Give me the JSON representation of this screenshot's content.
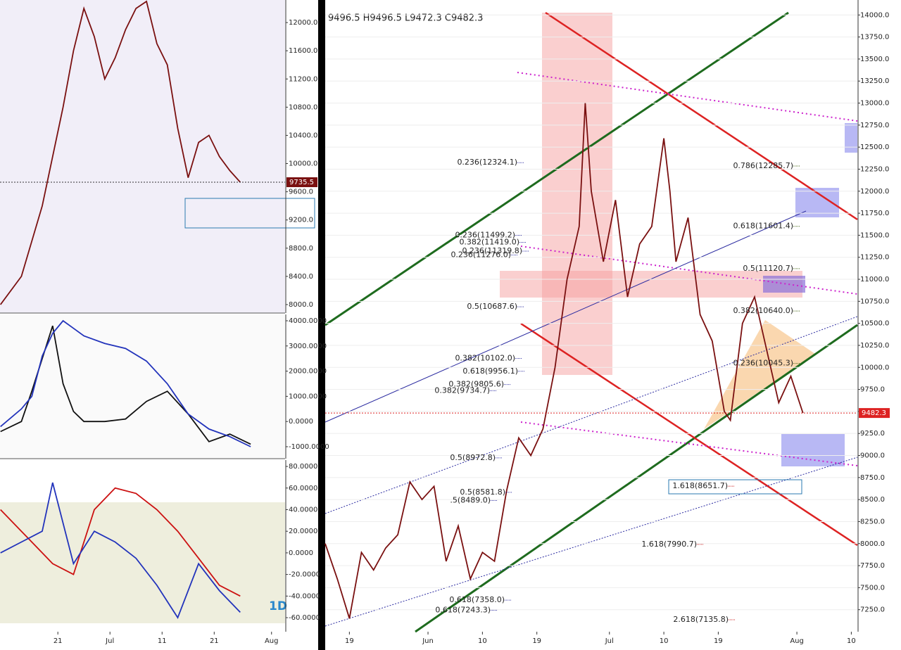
{
  "chart_data": [
    {
      "type": "line",
      "ohlc_label": "9496.5 H9496.5 L9472.3 C9482.3",
      "last_price": 9482.3,
      "grid": true,
      "x": [
        14,
        16,
        18,
        20,
        22,
        24,
        26,
        28,
        30,
        32,
        34,
        36,
        38,
        40,
        42,
        44,
        46,
        48,
        50,
        52,
        54,
        56,
        57,
        58,
        60,
        62,
        64,
        66,
        68,
        70,
        71,
        72,
        74,
        76,
        78,
        80,
        81,
        83,
        85,
        87,
        89,
        91,
        93
      ],
      "series": [
        {
          "color": "#7a1010",
          "values": [
            8000,
            7600,
            7150,
            7900,
            7700,
            7950,
            8100,
            8700,
            8500,
            8650,
            7800,
            8200,
            7600,
            7900,
            7800,
            8600,
            9200,
            9000,
            9300,
            10000,
            11000,
            11600,
            13000,
            12000,
            11200,
            11900,
            10800,
            11400,
            11600,
            12600,
            12000,
            11200,
            11700,
            10600,
            10300,
            9500,
            9400,
            10500,
            10800,
            10200,
            9600,
            9900,
            9482.3
          ]
        }
      ],
      "xlim": [
        14,
        102
      ],
      "ylim": [
        7000,
        14170
      ],
      "xticks": [
        {
          "value": 18,
          "label": "19"
        },
        {
          "value": 31,
          "label": "Jun"
        },
        {
          "value": 40,
          "label": "10"
        },
        {
          "value": 49,
          "label": "19"
        },
        {
          "value": 61,
          "label": "Jul"
        },
        {
          "value": 70,
          "label": "10"
        },
        {
          "value": 79,
          "label": "19"
        },
        {
          "value": 92,
          "label": "Aug"
        },
        {
          "value": 101,
          "label": "10"
        }
      ],
      "yticks": [
        {
          "value": 14000,
          "label": "14000.0"
        },
        {
          "value": 13750,
          "label": "13750.0"
        },
        {
          "value": 13500,
          "label": "13500.0"
        },
        {
          "value": 13250,
          "label": "13250.0"
        },
        {
          "value": 13000,
          "label": "13000.0"
        },
        {
          "value": 12750,
          "label": "12750.0"
        },
        {
          "value": 12500,
          "label": "12500.0"
        },
        {
          "value": 12250,
          "label": "12250.0"
        },
        {
          "value": 12000,
          "label": "12000.0"
        },
        {
          "value": 11750,
          "label": "11750.0"
        },
        {
          "value": 11500,
          "label": "11500.0"
        },
        {
          "value": 11250,
          "label": "11250.0"
        },
        {
          "value": 11000,
          "label": "11000.0"
        },
        {
          "value": 10750,
          "label": "10750.0"
        },
        {
          "value": 10500,
          "label": "10500.0"
        },
        {
          "value": 10250,
          "label": "10250.0"
        },
        {
          "value": 10000,
          "label": "10000.0"
        },
        {
          "value": 9750,
          "label": "9750.0"
        },
        {
          "value": 9500,
          "label": "9500.0"
        },
        {
          "value": 9250,
          "label": "9250.0"
        },
        {
          "value": 9000,
          "label": "9000.0"
        },
        {
          "value": 8750,
          "label": "8750.0"
        },
        {
          "value": 8500,
          "label": "8500.0"
        },
        {
          "value": 8250,
          "label": "8250.0"
        },
        {
          "value": 8000,
          "label": "8000.0"
        },
        {
          "value": 7750,
          "label": "7750.0"
        },
        {
          "value": 7500,
          "label": "7500.0"
        },
        {
          "value": 7250,
          "label": "7250.0"
        }
      ],
      "annotations": [
        {
          "value": 12324.1,
          "label": "0.236(12324.1)",
          "color": "#3a3aa8"
        },
        {
          "value": 11499.2,
          "label": "0.236(11499.2)",
          "color": "#3a3aa8"
        },
        {
          "value": 11419.0,
          "label": "0.382(11419.0)",
          "color": "#3a3aa8"
        },
        {
          "value": 11319.8,
          "label": "0.236(11319.8)",
          "color": "#3a3aa8"
        },
        {
          "value": 11276.0,
          "label": "0.236(11276.0)",
          "color": "#3a3aa8"
        },
        {
          "value": 10687.6,
          "label": "0.5(10687.6)",
          "color": "#3a3aa8"
        },
        {
          "value": 10102.0,
          "label": "0.382(10102.0)",
          "color": "#3a3aa8"
        },
        {
          "value": 9956.1,
          "label": "0.618(9956.1)",
          "color": "#3a3aa8"
        },
        {
          "value": 9805.6,
          "label": "0.382(9805.6)",
          "color": "#3a3aa8"
        },
        {
          "value": 9734.7,
          "label": "0.382(9734.7)",
          "color": "#3a3aa8"
        },
        {
          "value": 8972.8,
          "label": "0.5(8972.8)",
          "color": "#3a3aa8"
        },
        {
          "value": 8581.8,
          "label": "0.5(8581.8)",
          "color": "#3a3aa8"
        },
        {
          "value": 8489.0,
          "label": ".5(8489.0)",
          "color": "#3a3aa8"
        },
        {
          "value": 7358.0,
          "label": "0.618(7358.0)",
          "color": "#3a3aa8"
        },
        {
          "value": 7243.3,
          "label": "0.618(7243.3)",
          "color": "#3a3aa8"
        },
        {
          "value": 12285.7,
          "label": "0.786(12285.7)",
          "color": "#4a6a1a"
        },
        {
          "value": 11601.4,
          "label": "0.618(11601.4)",
          "color": "#4a6a1a"
        },
        {
          "value": 11120.7,
          "label": "0.5(11120.7)",
          "color": "#4a6a1a"
        },
        {
          "value": 10640.0,
          "label": "0.382(10640.0)",
          "color": "#4a6a1a"
        },
        {
          "value": 10045.3,
          "label": "0.236(10045.3)",
          "color": "#4a6a1a"
        },
        {
          "value": 8651.7,
          "label": "1.618(8651.7)",
          "color": "#cc2222"
        },
        {
          "value": 7990.7,
          "label": "1.618(7990.7)",
          "color": "#cc2222"
        },
        {
          "value": 7135.8,
          "label": "2.618(7135.8)",
          "color": "#cc2222"
        }
      ]
    },
    {
      "type": "line",
      "last_price": 9735.5,
      "grid": false,
      "x": [
        40,
        44,
        48,
        52,
        54,
        56,
        58,
        60,
        62,
        64,
        66,
        68,
        70,
        72,
        74,
        76,
        78,
        80,
        82,
        84,
        86
      ],
      "series": [
        {
          "color": "#7a1010",
          "values": [
            8000,
            8400,
            9400,
            10800,
            11600,
            12200,
            11800,
            11200,
            11500,
            11900,
            12200,
            12300,
            11700,
            11400,
            10500,
            9800,
            10300,
            10400,
            10100,
            9900,
            9735.5
          ]
        }
      ],
      "xlim": [
        39.9,
        94.6
      ],
      "ylim": [
        7880,
        12320
      ],
      "yticks": [
        {
          "value": 12000,
          "label": "12000.0"
        },
        {
          "value": 11600,
          "label": "11600.0"
        },
        {
          "value": 11200,
          "label": "11200.0"
        },
        {
          "value": 10800,
          "label": "10800.0"
        },
        {
          "value": 10400,
          "label": "10400.0"
        },
        {
          "value": 10000,
          "label": "10000.0"
        },
        {
          "value": 9600,
          "label": "9600.0"
        },
        {
          "value": 9200,
          "label": "9200.0"
        },
        {
          "value": 8800,
          "label": "8800.0"
        },
        {
          "value": 8400,
          "label": "8400.0"
        },
        {
          "value": 8000,
          "label": "8000.0"
        }
      ]
    },
    {
      "type": "line",
      "grid": false,
      "x": [
        40,
        44,
        46,
        48,
        50,
        52,
        54,
        56,
        60,
        64,
        68,
        72,
        76,
        80,
        84,
        88
      ],
      "series": [
        {
          "color": "#111111",
          "values": [
            -400,
            0,
            1200,
            2500,
            3800,
            1500,
            400,
            0,
            0,
            100,
            800,
            1200,
            300,
            -800,
            -500,
            -900
          ]
        },
        {
          "color": "#2233bb",
          "values": [
            -200,
            500,
            1000,
            2600,
            3500,
            4000,
            3700,
            3400,
            3100,
            2900,
            2400,
            1500,
            300,
            -300,
            -600,
            -1000
          ]
        }
      ],
      "xlim": [
        39.9,
        94.6
      ],
      "ylim": [
        -1475,
        4251
      ],
      "yticks": [
        {
          "value": 4000,
          "label": "4000.0000"
        },
        {
          "value": 3000,
          "label": "3000.0000"
        },
        {
          "value": 2000,
          "label": "2000.0000"
        },
        {
          "value": 1000,
          "label": "1000.0000"
        },
        {
          "value": 0,
          "label": "0.0000"
        },
        {
          "value": -1000,
          "label": "-1000.0000"
        }
      ]
    },
    {
      "type": "line",
      "grid": false,
      "label": "1D",
      "x": [
        40,
        44,
        48,
        50,
        54,
        58,
        62,
        66,
        70,
        74,
        78,
        82,
        86
      ],
      "series": [
        {
          "color": "#cc1111",
          "values": [
            40,
            20,
            0,
            -10,
            -20,
            40,
            60,
            55,
            40,
            20,
            -5,
            -30,
            -40
          ]
        },
        {
          "color": "#2233bb",
          "values": [
            0,
            10,
            20,
            65,
            -10,
            20,
            10,
            -5,
            -30,
            -60,
            -10,
            -35,
            -55
          ]
        }
      ],
      "xlim": [
        39.9,
        94.6
      ],
      "ylim": [
        -73,
        85.9
      ],
      "xticks": [
        {
          "value": 51,
          "label": "21"
        },
        {
          "value": 61,
          "label": "Jul"
        },
        {
          "value": 71,
          "label": "11"
        },
        {
          "value": 81,
          "label": "21"
        },
        {
          "value": 92,
          "label": "Aug"
        }
      ],
      "yticks": [
        {
          "value": 80,
          "label": "80.0000"
        },
        {
          "value": 60,
          "label": "60.0000"
        },
        {
          "value": 40,
          "label": "40.0000"
        },
        {
          "value": 20,
          "label": "20.0000"
        },
        {
          "value": 0,
          "label": "0.0000"
        },
        {
          "value": -20,
          "label": "-20.0000"
        },
        {
          "value": -40,
          "label": "-40.0000"
        },
        {
          "value": -60,
          "label": "-60.0000"
        }
      ]
    }
  ]
}
